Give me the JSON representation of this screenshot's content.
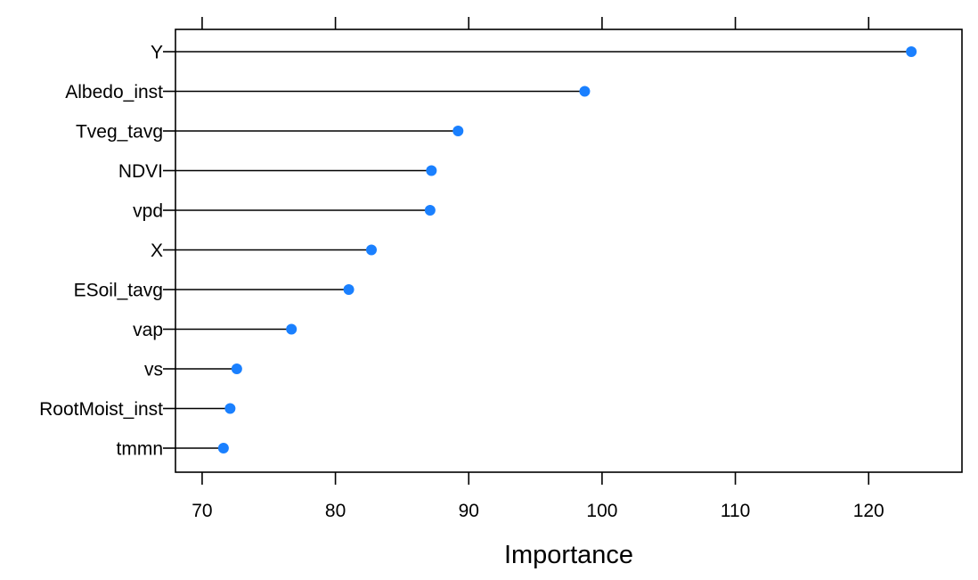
{
  "chart_data": {
    "type": "dot",
    "title": "",
    "xlabel": "Importance",
    "ylabel": "",
    "xlim": [
      68,
      127
    ],
    "xticks": [
      70,
      80,
      90,
      100,
      110,
      120
    ],
    "xtick_labels": [
      "70",
      "80",
      "90",
      "100",
      "110",
      "120"
    ],
    "categories": [
      "Y",
      "Albedo_inst",
      "Tveg_tavg",
      "NDVI",
      "vpd",
      "X",
      "ESoil_tavg",
      "vap",
      "vs",
      "RootMoist_inst",
      "tmmn"
    ],
    "values": [
      123.2,
      98.7,
      89.2,
      87.2,
      87.1,
      82.7,
      81.0,
      76.7,
      72.6,
      72.1,
      71.6
    ],
    "colors": {
      "point": "#1a80ff",
      "line": "#000000",
      "frame": "#000000"
    },
    "grid": false,
    "legend": "none"
  }
}
